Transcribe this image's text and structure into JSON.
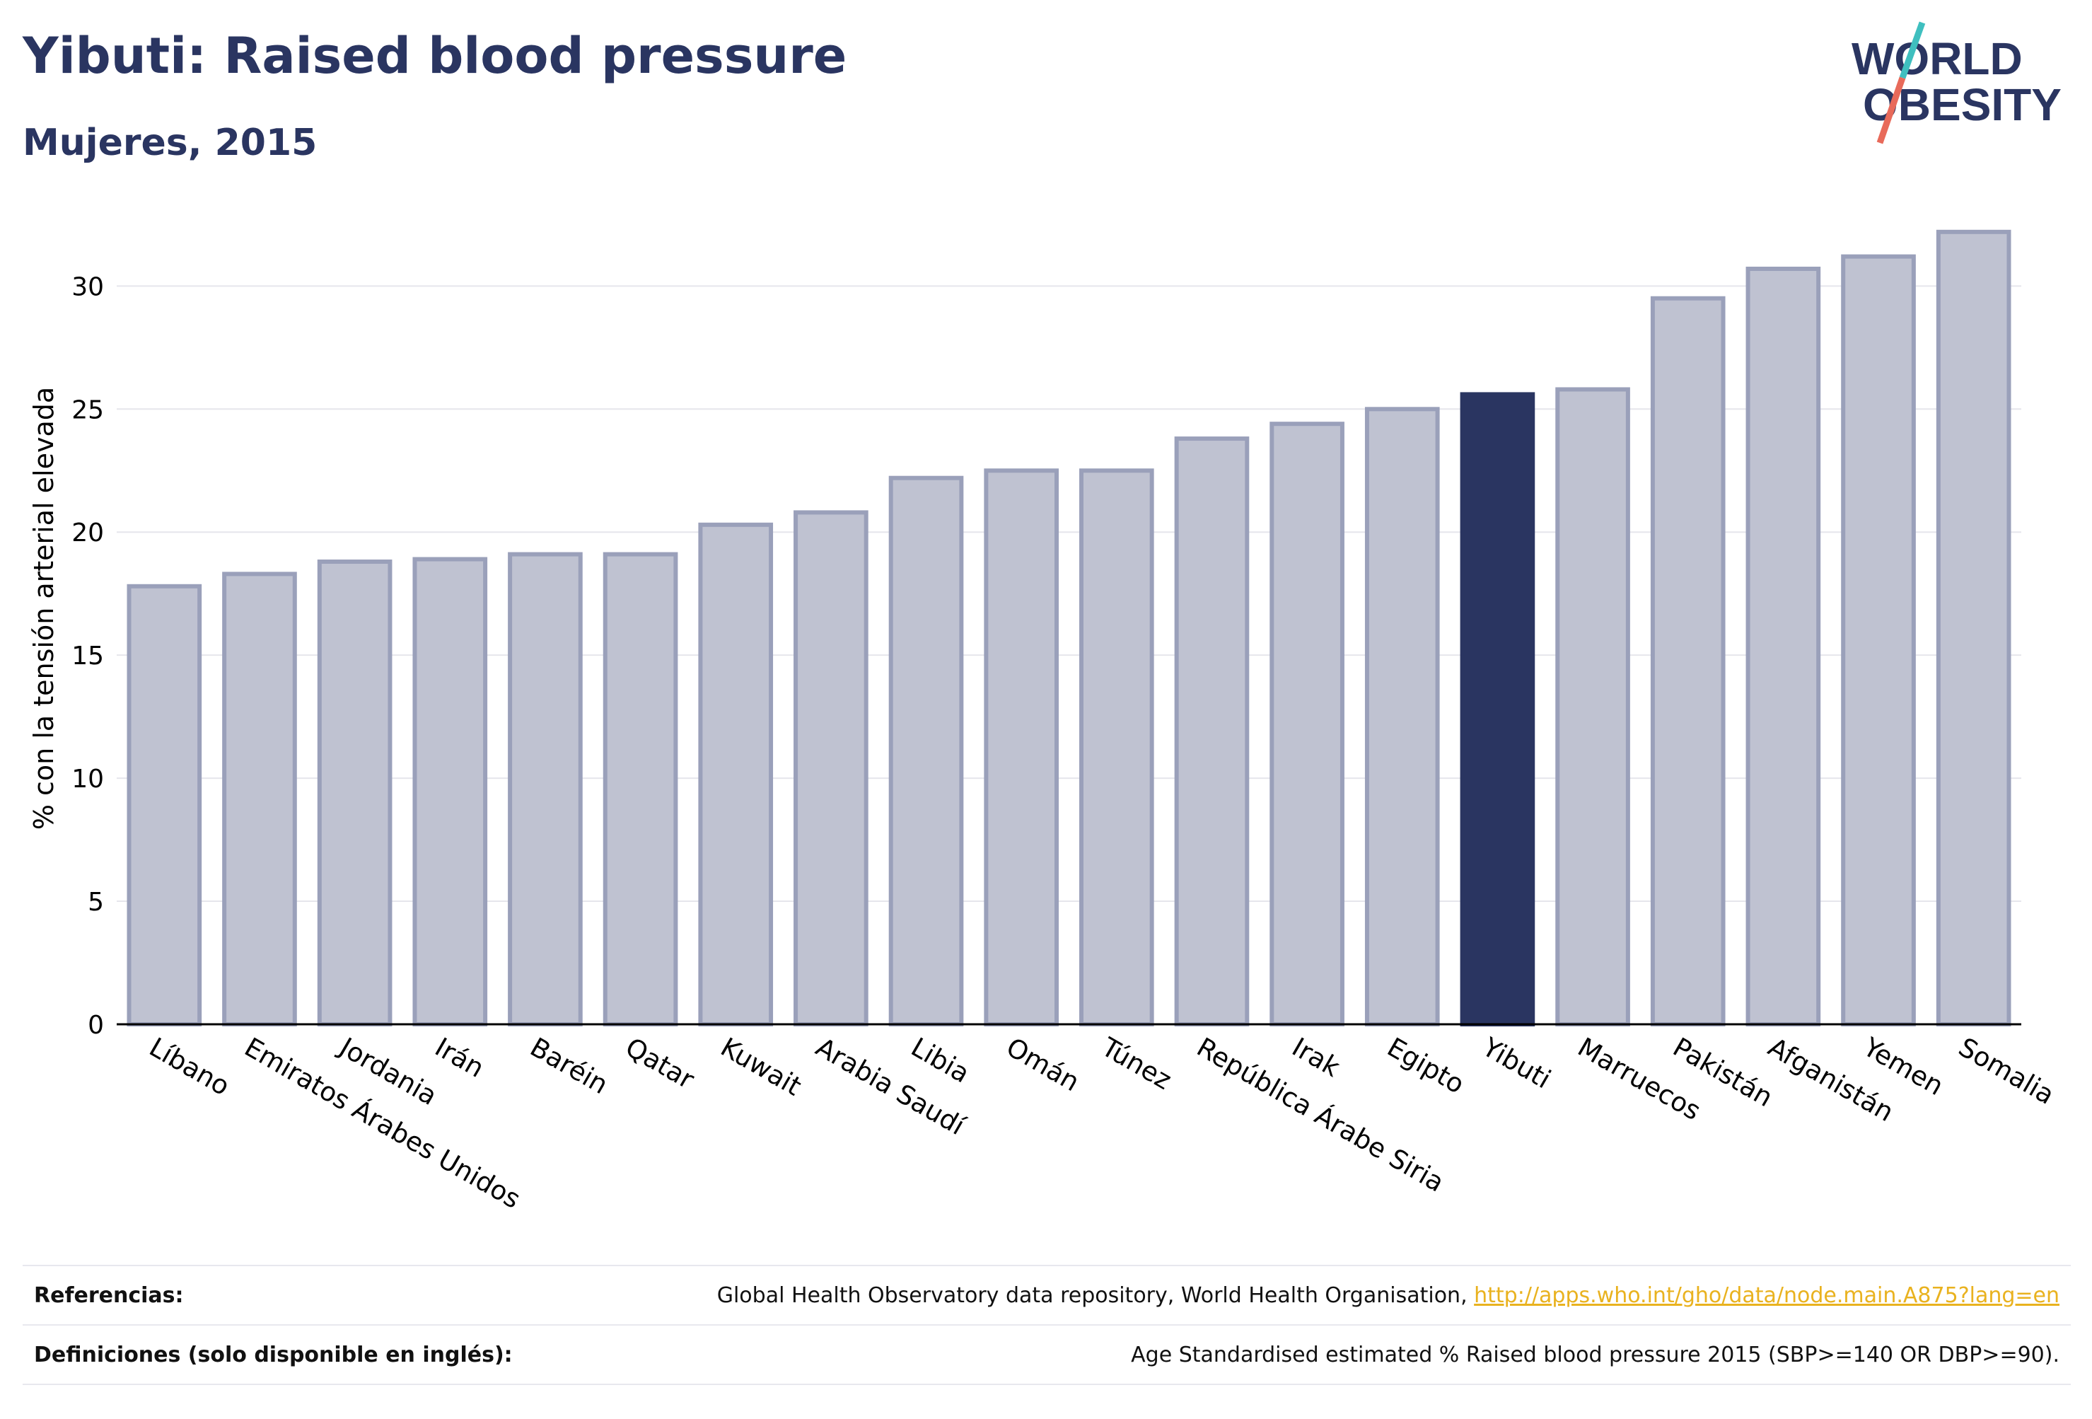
{
  "header": {
    "title": "Yibuti: Raised blood pressure",
    "subtitle": "Mujeres, 2015"
  },
  "logo": {
    "line1": "WORLD",
    "line2": "OBESITY",
    "slash_colors": [
      "#3fbfbf",
      "#e86a5a"
    ]
  },
  "chart_data": {
    "type": "bar",
    "title": "Yibuti: Raised blood pressure",
    "subtitle": "Mujeres, 2015",
    "xlabel": "",
    "ylabel": "% con la tensión arterial elevada",
    "ylim": [
      0,
      33
    ],
    "yticks": [
      0,
      5,
      10,
      15,
      20,
      25,
      30
    ],
    "grid": true,
    "legend": "none",
    "highlight": "Yibuti",
    "colors": {
      "bar": "#bfc2d1",
      "bar_border": "#9aa0ba",
      "highlight": "#2a3561",
      "grid": "#e6e6ec",
      "axis": "#000000"
    },
    "categories": [
      "Líbano",
      "Emiratos Árabes Unidos",
      "Jordania",
      "Irán",
      "Baréin",
      "Qatar",
      "Kuwait",
      "Arabia Saudí",
      "Libia",
      "Omán",
      "Túnez",
      "República Árabe Siria",
      "Irak",
      "Egipto",
      "Yibuti",
      "Marruecos",
      "Pakistán",
      "Afganistán",
      "Yemen",
      "Somalia"
    ],
    "values": [
      17.8,
      18.3,
      18.8,
      18.9,
      19.1,
      19.1,
      20.3,
      20.8,
      22.2,
      22.5,
      22.5,
      23.8,
      24.4,
      25.0,
      25.6,
      25.8,
      29.5,
      30.7,
      31.2,
      32.2
    ]
  },
  "footer": {
    "references_label": "Referencias:",
    "references_text": "Global Health Observatory data repository, World Health Organisation, ",
    "references_link": "http://apps.who.int/gho/data/node.main.A875?lang=en",
    "definitions_label": "Definiciones (solo disponible en inglés):",
    "definitions_text": "Age Standardised estimated % Raised blood pressure 2015 (SBP>=140 OR DBP>=90)."
  }
}
